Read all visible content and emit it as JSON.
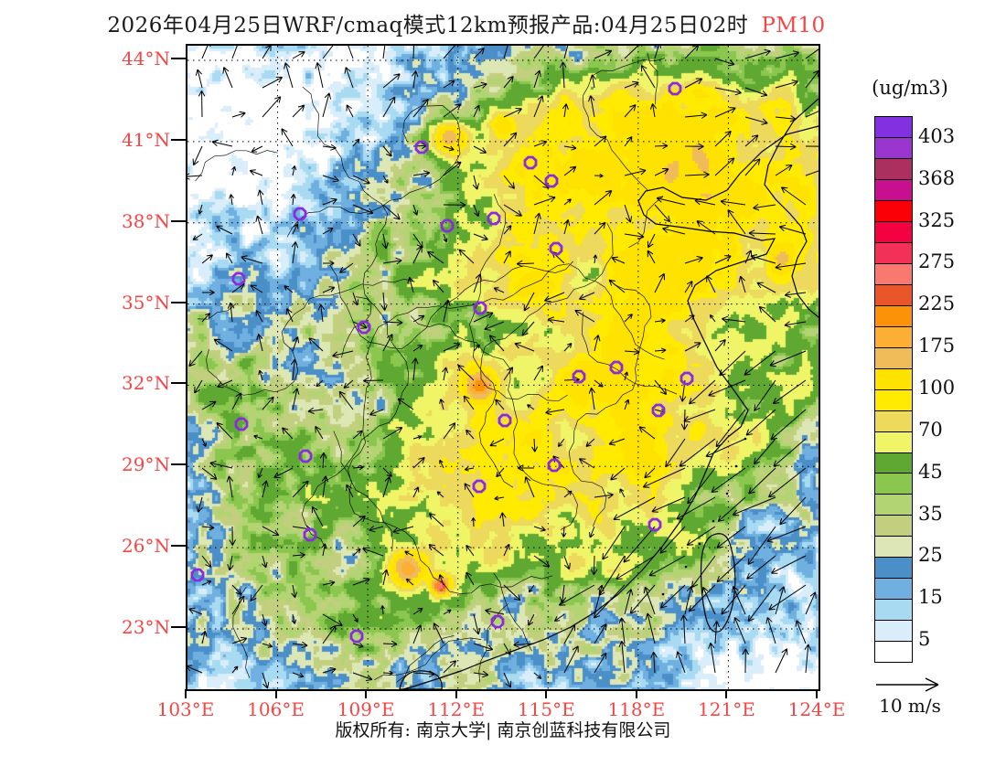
{
  "title": {
    "main": "2026年04月25日WRF/cmaq模式12km预报产品:04月25日02时",
    "species": "PM10"
  },
  "axes": {
    "lat_labels": [
      "44°N",
      "41°N",
      "38°N",
      "35°N",
      "32°N",
      "29°N",
      "26°N",
      "23°N"
    ],
    "lat_values": [
      44,
      41,
      38,
      35,
      32,
      29,
      26,
      23
    ],
    "lon_labels": [
      "103°E",
      "106°E",
      "109°E",
      "112°E",
      "115°E",
      "118°E",
      "121°E",
      "124°E"
    ],
    "lon_values": [
      103,
      106,
      109,
      112,
      115,
      118,
      121,
      124
    ],
    "lon_range": [
      103,
      124
    ],
    "lat_range": [
      23,
      44
    ],
    "label_color": "#f54545"
  },
  "colorbar": {
    "units": "(ug/m3)",
    "labels": [
      "403",
      "368",
      "325",
      "275",
      "225",
      "175",
      "100",
      "70",
      "45",
      "35",
      "25",
      "15",
      "5"
    ],
    "colors_top_to_bottom": [
      "#8330e0",
      "#9a35cf",
      "#ab3060",
      "#c70f8f",
      "#fb0006",
      "#f50041",
      "#f23058",
      "#f97971",
      "#e8562a",
      "#fb9207",
      "#fcaf34",
      "#efbc59",
      "#ffe200",
      "#ffea00",
      "#edd95b",
      "#f0f467",
      "#5fa832",
      "#8bc74f",
      "#b2d472",
      "#c2cf7e",
      "#dde7b5",
      "#4b8fc9",
      "#70b0e0",
      "#a8dbf2",
      "#d9edfa",
      "#ffffff"
    ],
    "levels_ascending": [
      5,
      10,
      15,
      20,
      25,
      30,
      35,
      40,
      45,
      57,
      70,
      85,
      100,
      137,
      175,
      200,
      225,
      250,
      275,
      300,
      325,
      346,
      368,
      385,
      403
    ]
  },
  "wind_legend": {
    "label": "10 m/s"
  },
  "footer": {
    "copyright": "版权所有: 南京大学| 南京创蓝科技有限公司"
  },
  "style_colors": {
    "marker_outline": "#8a2be2",
    "coastline": "#000000",
    "wind_arrow": "#000000",
    "title_text": "#1a1a1a"
  },
  "map": {
    "markers": [
      [
        256,
        111
      ],
      [
        123,
        184
      ],
      [
        284,
        197
      ],
      [
        335,
        189
      ],
      [
        56,
        255
      ],
      [
        193,
        308
      ],
      [
        320,
        287
      ],
      [
        533,
        47
      ],
      [
        375,
        128
      ],
      [
        398,
        148
      ],
      [
        403,
        222
      ],
      [
        59,
        414
      ],
      [
        129,
        449
      ],
      [
        134,
        535
      ],
      [
        11,
        579
      ],
      [
        319,
        482
      ],
      [
        339,
        630
      ],
      [
        185,
        646
      ],
      [
        428,
        362
      ],
      [
        469,
        352
      ],
      [
        546,
        364
      ],
      [
        515,
        399
      ],
      [
        401,
        459
      ],
      [
        511,
        524
      ],
      [
        347,
        410
      ]
    ],
    "field": {
      "base": 13,
      "bumps": [
        [
          120,
          110,
          150,
          110,
          -16
        ],
        [
          300,
          60,
          180,
          60,
          -9
        ],
        [
          60,
          180,
          90,
          90,
          -8
        ],
        [
          375,
          15,
          60,
          40,
          -8
        ],
        [
          285,
          420,
          90,
          55,
          -11
        ],
        [
          310,
          620,
          70,
          45,
          -10
        ],
        [
          655,
          585,
          100,
          120,
          -10
        ],
        [
          560,
          680,
          120,
          60,
          -7
        ],
        [
          620,
          430,
          120,
          160,
          -6
        ],
        [
          430,
          250,
          190,
          170,
          58
        ],
        [
          500,
          140,
          130,
          80,
          30
        ],
        [
          560,
          95,
          130,
          60,
          26
        ],
        [
          658,
          200,
          52,
          80,
          30
        ],
        [
          340,
          550,
          170,
          100,
          34
        ],
        [
          480,
          430,
          120,
          110,
          36
        ],
        [
          30,
          300,
          50,
          130,
          12
        ],
        [
          120,
          520,
          90,
          120,
          10
        ],
        [
          590,
          210,
          60,
          80,
          6
        ],
        [
          610,
          350,
          45,
          110,
          5
        ]
      ],
      "hotspots": [
        [
          287,
          100,
          13,
          110
        ],
        [
          345,
          85,
          10,
          60
        ],
        [
          320,
          372,
          11,
          140
        ],
        [
          240,
          572,
          13,
          150
        ],
        [
          277,
          591,
          7,
          230
        ],
        [
          652,
          233,
          8,
          60
        ]
      ]
    },
    "coast_paths": [
      "M690,88 L655,97 L628,116 L604,140 L590,158 L567,169 L541,166 L520,155 L501,159 L493,170 L499,185 L512,195 L543,199 L570,203 L598,205 L628,213 L642,211 L633,228 L605,237 L578,246 L555,262 L547,279 L554,300 L565,323 L579,352 L599,379 L613,399 L605,417 L591,428 L575,446 L565,470 L555,493 L539,520 L519,548 L497,574 L471,600 L445,620 L419,636 L389,650 L359,661 L329,672 L299,684 L269,694 L247,701 L236,704",
      "M690,58 L663,82 L647,107 L635,131 L631,152 L643,168 L659,184 L671,198 L677,214 L667,232 L661,252 L667,272 L679,288 L690,297",
      "M573,536 Q589,528 594,548 Q602,576 597,606 Q593,630 583,640 Q571,646 566,622 Q560,592 562,562 Q564,542 573,536 Z",
      "M232,704 Q236,682 258,684 Q280,686 278,704 Z"
    ]
  }
}
